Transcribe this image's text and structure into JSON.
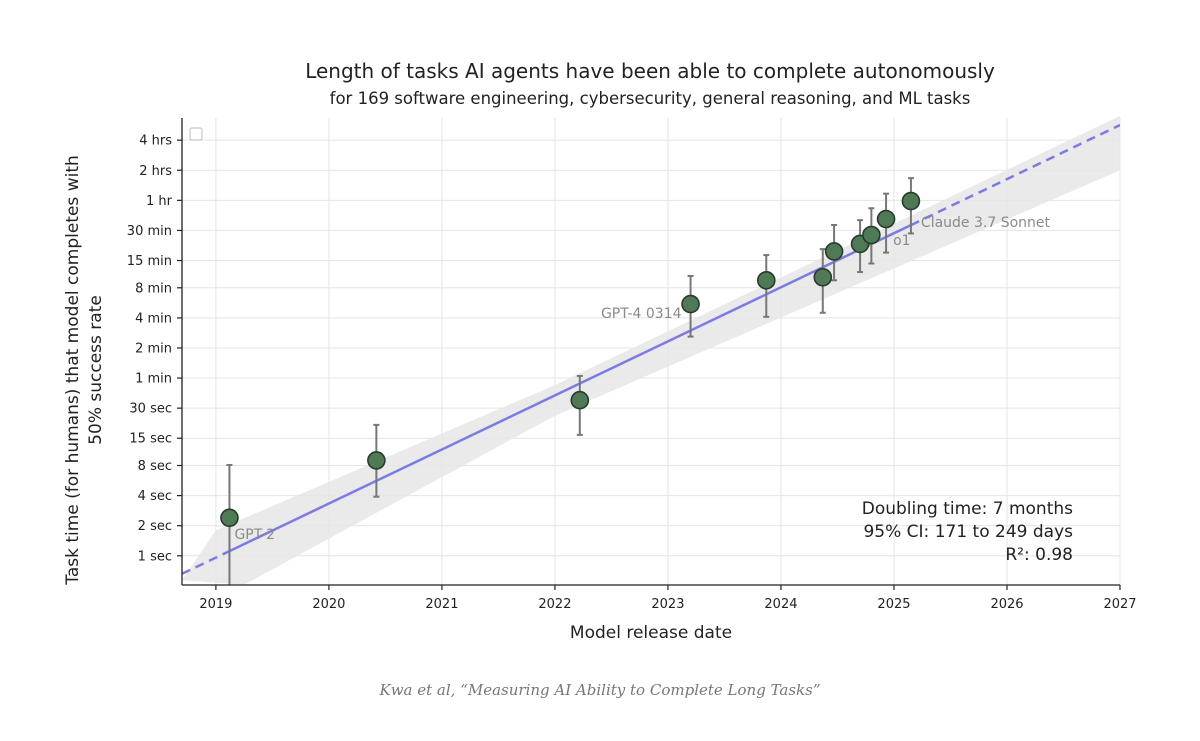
{
  "chart_data": {
    "type": "scatter",
    "title": "Length of tasks AI agents have been able to complete autonomously",
    "subtitle": "for 169 software engineering, cybersecurity, general reasoning, and ML tasks",
    "xlabel": "Model release date",
    "ylabel": [
      "Task time (for humans) that model completes with",
      "50% success rate"
    ],
    "y_scale": "log",
    "y_unit": "minutes",
    "x_unit": "year",
    "xlim": [
      2018.7,
      2027.0
    ],
    "ylim_minutes": [
      0.0085,
      400
    ],
    "x_ticks": [
      "2019",
      "2020",
      "2021",
      "2022",
      "2023",
      "2024",
      "2025",
      "2026",
      "2027"
    ],
    "x_tick_values": [
      2019,
      2020,
      2021,
      2022,
      2023,
      2024,
      2025,
      2026,
      2027
    ],
    "y_ticks": [
      {
        "label": "1 sec",
        "minutes": 0.016667
      },
      {
        "label": "2 sec",
        "minutes": 0.033333
      },
      {
        "label": "4 sec",
        "minutes": 0.066667
      },
      {
        "label": "8 sec",
        "minutes": 0.133333
      },
      {
        "label": "15 sec",
        "minutes": 0.25
      },
      {
        "label": "30 sec",
        "minutes": 0.5
      },
      {
        "label": "1 min",
        "minutes": 1
      },
      {
        "label": "2 min",
        "minutes": 2
      },
      {
        "label": "4 min",
        "minutes": 4
      },
      {
        "label": "8 min",
        "minutes": 8
      },
      {
        "label": "15 min",
        "minutes": 15
      },
      {
        "label": "30 min",
        "minutes": 30
      },
      {
        "label": "1 hr",
        "minutes": 60
      },
      {
        "label": "2 hrs",
        "minutes": 120
      },
      {
        "label": "4 hrs",
        "minutes": 240
      }
    ],
    "points": [
      {
        "x": 2019.12,
        "y": 0.04,
        "lo": 0.004,
        "hi": 0.135,
        "label": "GPT-2"
      },
      {
        "x": 2020.42,
        "y": 0.15,
        "lo": 0.065,
        "hi": 0.34,
        "label": ""
      },
      {
        "x": 2022.22,
        "y": 0.6,
        "lo": 0.27,
        "hi": 1.05,
        "label": ""
      },
      {
        "x": 2023.2,
        "y": 5.5,
        "lo": 2.6,
        "hi": 10.5,
        "label": "GPT-4 0314"
      },
      {
        "x": 2023.87,
        "y": 9.5,
        "lo": 4.1,
        "hi": 17,
        "label": ""
      },
      {
        "x": 2024.37,
        "y": 10.2,
        "lo": 4.5,
        "hi": 19.5,
        "label": ""
      },
      {
        "x": 2024.47,
        "y": 18.5,
        "lo": 9.5,
        "hi": 34,
        "label": ""
      },
      {
        "x": 2024.7,
        "y": 22,
        "lo": 11.5,
        "hi": 38,
        "label": ""
      },
      {
        "x": 2024.8,
        "y": 27,
        "lo": 14,
        "hi": 50,
        "label": ""
      },
      {
        "x": 2024.93,
        "y": 39,
        "lo": 18,
        "hi": 70,
        "label": "o1"
      },
      {
        "x": 2025.15,
        "y": 59,
        "lo": 28,
        "hi": 100,
        "label": "Claude 3.7 Sonnet"
      }
    ],
    "trend": {
      "type": "exponential",
      "fitted_range": [
        2019.12,
        2025.15
      ],
      "x_start": 2018.7,
      "y_start_minutes": 0.011,
      "x_end": 2027.0,
      "y_end_minutes": 340,
      "ci_upper_start_minutes": 0.0085,
      "ci_lower_start_minutes": 0.0085,
      "ci_upper_end_minutes": 420,
      "ci_lower_end_minutes": 120,
      "ci_upper_at_2019": 0.03,
      "ci_lower_at_2019": 0.006,
      "ci_upper_at_2022": 0.85,
      "ci_lower_at_2022": 0.42
    },
    "annotations": [
      "Doubling time: 7 months",
      "95% CI: 171 to 249 days",
      "R²: 0.98"
    ],
    "colors": {
      "marker_fill": "#4e7a55",
      "marker_edge": "#2a3a2c",
      "trend_line": "#7b7be6",
      "ci_band": "#e6e6e6",
      "error_bar": "#777777",
      "grid": "#e4e4e4"
    },
    "grid": true,
    "legend": "top-left (empty)"
  },
  "caption": "Kwa et al, “Measuring AI Ability to Complete Long Tasks”"
}
